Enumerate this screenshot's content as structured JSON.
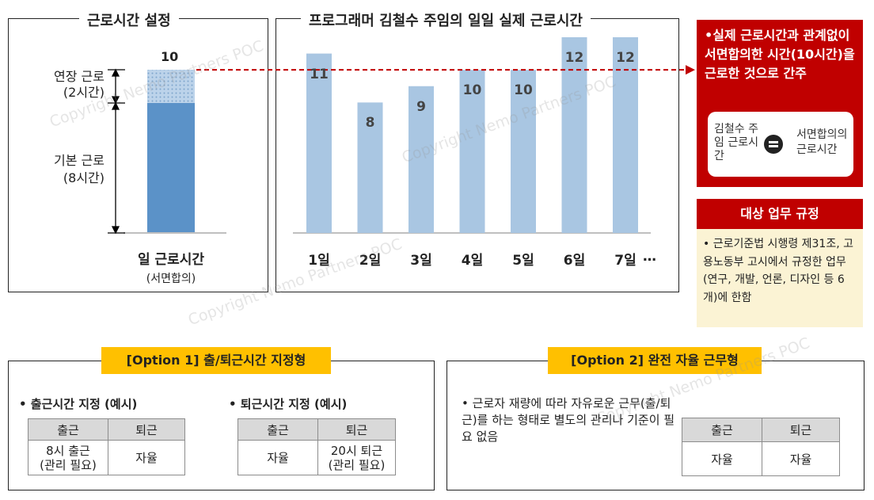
{
  "left_panel": {
    "title": "근로시간 설정",
    "total_value": "10",
    "overtime_label": "연장 근로",
    "overtime_hours": "(2시간)",
    "base_label": "기본 근로",
    "base_hours": "(8시간)",
    "xlabel": "일 근로시간",
    "xlabel_sub": "(서면합의)",
    "colors": {
      "base": "#5b92c8",
      "overtime": "#bcd3ea"
    }
  },
  "chart_data": {
    "type": "bar",
    "title": "프로그래머 김철수 주임의 일일 실제 근로시간",
    "categories": [
      "1일",
      "2일",
      "3일",
      "4일",
      "5일",
      "6일",
      "7일"
    ],
    "values": [
      11,
      8,
      9,
      10,
      10,
      12,
      12
    ],
    "ylim": [
      0,
      12
    ],
    "continuation_mark": "…",
    "bar_color": "#a9c6e2",
    "reference_line": {
      "value": 10,
      "color": "#c00000",
      "style": "dashed"
    }
  },
  "red_box": {
    "text": "•실제 근로시간과 관계없이 서면합의한 시간(10시간)을 근로한 것으로 간주",
    "left_term": "김철수 주임 근로시간",
    "right_term": "서면합의의 근로시간",
    "equals_icon": "equals-circle-icon"
  },
  "target": {
    "header": "대상 업무 규정",
    "text": "• 근로기준법 시행령 제31조, 고용노동부 고시에서 규정한 업무 (연구, 개발, 언론, 디자인 등 6개)에 한함"
  },
  "option1": {
    "title": "[Option 1] 출/퇴근시간 지정형",
    "left": {
      "subtitle": "• 출근시간 지정 (예시)",
      "headers": [
        "출근",
        "퇴근"
      ],
      "cells": [
        "8시 출근\n(관리 필요)",
        "자율"
      ]
    },
    "right": {
      "subtitle": "• 퇴근시간 지정 (예시)",
      "headers": [
        "출근",
        "퇴근"
      ],
      "cells": [
        "자율",
        "20시 퇴근\n(관리 필요)"
      ]
    }
  },
  "option2": {
    "title": "[Option 2] 완전 자율 근무형",
    "text": "• 근로자 재량에 따라 자유로운 근무(출/퇴근)를 하는 형태로 별도의 관리나 기준이 필요 없음",
    "headers": [
      "출근",
      "퇴근"
    ],
    "cells": [
      "자율",
      "자율"
    ]
  },
  "watermark": "Copyright Nemo Partners POC"
}
